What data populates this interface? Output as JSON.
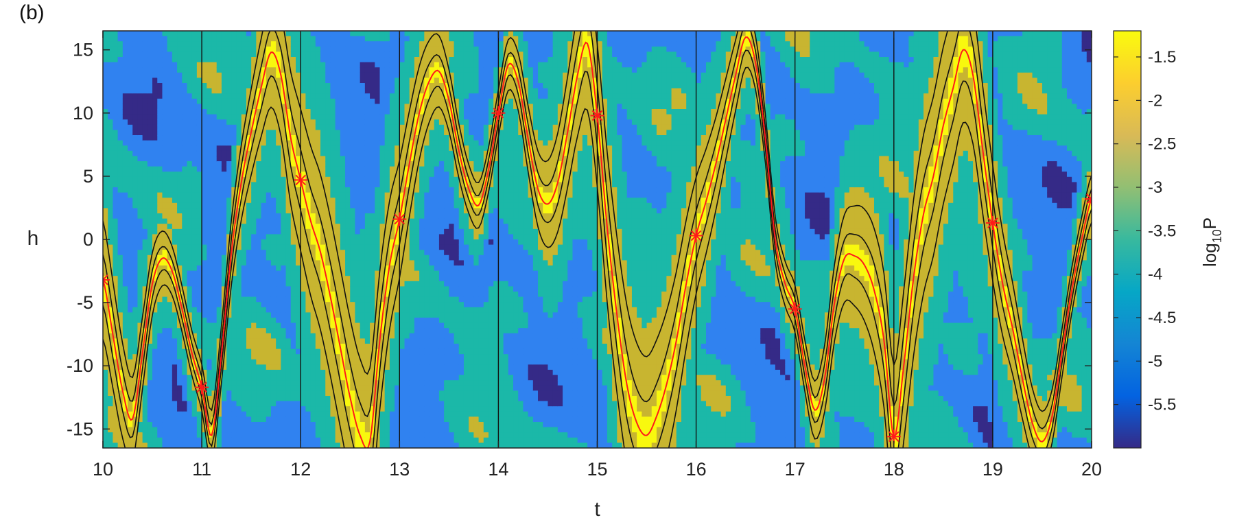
{
  "panel_label": "(b)",
  "chart_data": {
    "type": "heatmap",
    "xlabel": "t",
    "ylabel": "h",
    "colorbar_label": "log10P",
    "colorbar_label_parts": {
      "base": "log",
      "sub": "10",
      "sup": "P"
    },
    "xlim": [
      10,
      20
    ],
    "ylim": [
      -16.5,
      16.5
    ],
    "x_ticks": [
      10,
      11,
      12,
      13,
      14,
      15,
      16,
      17,
      18,
      19,
      20
    ],
    "y_ticks": [
      -15,
      -10,
      -5,
      0,
      5,
      10,
      15
    ],
    "clim": [
      -6,
      -1.2
    ],
    "colorbar_ticks": [
      -1.5,
      -2,
      -2.5,
      -3,
      -3.5,
      -4,
      -4.5,
      -5,
      -5.5
    ],
    "contour_levels": [
      -5.5,
      -4.5,
      -3.5,
      -2.5,
      -1.5
    ],
    "level_colors": [
      "#352a87",
      "#3082f0",
      "#1bb8a8",
      "#c8b530",
      "#f8f80e"
    ],
    "colorbar_gradient": [
      "#352a87",
      "#0363e1",
      "#1485d4",
      "#06a7c6",
      "#38b99e",
      "#92bf73",
      "#d9ba56",
      "#fcce2e",
      "#f9fb0e"
    ],
    "grid": false,
    "series": [
      {
        "name": "",
        "color": "#ff1a1a",
        "x": [
          10,
          10.1,
          10.2,
          10.3,
          10.4,
          10.5,
          10.6,
          10.7,
          10.8,
          10.9,
          11,
          11.1,
          11.2,
          11.3,
          11.4,
          11.5,
          11.6,
          11.7,
          11.8,
          11.9,
          12,
          12.1,
          12.2,
          12.3,
          12.4,
          12.5,
          12.6,
          12.7,
          12.8,
          12.9,
          13,
          13.1,
          13.2,
          13.3,
          13.4,
          13.5,
          13.6,
          13.7,
          13.8,
          13.9,
          14,
          14.1,
          14.2,
          14.3,
          14.4,
          14.5,
          14.6,
          14.7,
          14.8,
          14.9,
          15,
          15.1,
          15.2,
          15.3,
          15.4,
          15.5,
          15.6,
          15.7,
          15.8,
          15.9,
          16,
          16.1,
          16.2,
          16.3,
          16.4,
          16.5,
          16.6,
          16.7,
          16.8,
          16.9,
          17,
          17.1,
          17.2,
          17.3,
          17.4,
          17.5,
          17.6,
          17.7,
          17.8,
          17.9,
          18,
          18.1,
          18.2,
          18.3,
          18.4,
          18.5,
          18.6,
          18.7,
          18.8,
          18.9,
          19,
          19.1,
          19.2,
          19.3,
          19.4,
          19.5,
          19.6,
          19.7,
          19.8,
          19.9,
          20
        ],
        "y": [
          -3.2,
          -7.5,
          -12,
          -14.2,
          -9,
          -3.5,
          -1.5,
          -2.5,
          -5.5,
          -9,
          -11.7,
          -15.5,
          -9,
          -1,
          4.5,
          8.5,
          12,
          14.8,
          13,
          8,
          4.7,
          1.5,
          -1,
          -4.5,
          -8.5,
          -12.5,
          -15.5,
          -16,
          -8,
          -2,
          1.6,
          6,
          10,
          12.5,
          13.3,
          11,
          7,
          4,
          2.7,
          5.5,
          10,
          13.8,
          12.5,
          8,
          4,
          2.8,
          4.5,
          8.5,
          13,
          15.5,
          9.8,
          1,
          -6,
          -11.5,
          -14.5,
          -15.5,
          -14,
          -11.5,
          -8,
          -3.5,
          0.3,
          3,
          6,
          9.5,
          13,
          16,
          14,
          8,
          0,
          -3.5,
          -5.5,
          -10,
          -13.5,
          -11,
          -5,
          -1.5,
          -1.3,
          -2,
          -4,
          -8,
          -15.6,
          -10,
          -3,
          2,
          5,
          9,
          12,
          15,
          13,
          7,
          1.3,
          -3.5,
          -7,
          -11,
          -14.5,
          -16,
          -14,
          -9,
          -4,
          0,
          3.2
        ]
      },
      {
        "name": "",
        "color": "#ff1a1a",
        "markers_only": true,
        "x": [
          10,
          11,
          12,
          13,
          14,
          15,
          16,
          17,
          18,
          19,
          20
        ],
        "y": [
          -3.2,
          -11.7,
          4.7,
          1.6,
          10,
          9.8,
          0.3,
          -5.5,
          -15.6,
          1.3,
          3.2
        ]
      }
    ]
  }
}
